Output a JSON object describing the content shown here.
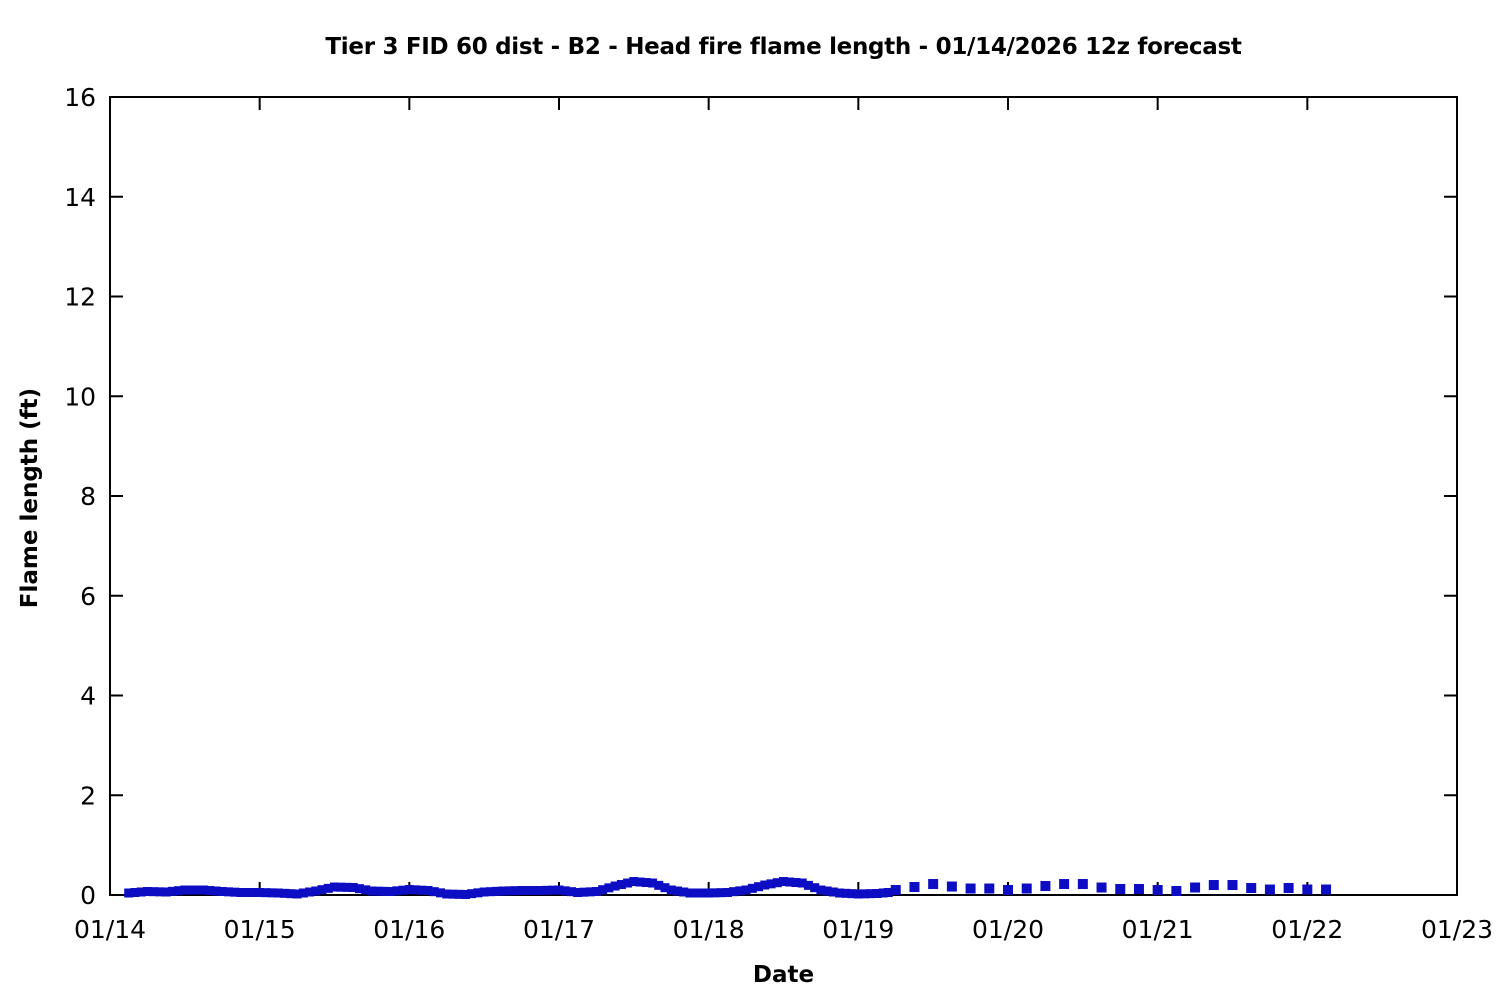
{
  "title": "Tier 3 FID 60 dist - B2 - Head fire flame length - 01/14/2026 12z forecast",
  "chart_data": {
    "type": "line",
    "title": "Tier 3 FID 60 dist - B2 - Head fire flame length - 01/14/2026 12z forecast",
    "xlabel": "Date",
    "ylabel": "Flame length (ft)",
    "x_tick_labels": [
      "01/14",
      "01/15",
      "01/16",
      "01/17",
      "01/18",
      "01/19",
      "01/20",
      "01/21",
      "01/22",
      "01/23"
    ],
    "y_tick_labels": [
      "0",
      "2",
      "4",
      "6",
      "8",
      "10",
      "12",
      "14",
      "16"
    ],
    "y_ticks": [
      0,
      2,
      4,
      6,
      8,
      10,
      12,
      14,
      16
    ],
    "ylim": [
      0,
      16
    ],
    "xlim_days_from_0114": [
      0,
      9
    ],
    "grid": false,
    "legend": "none",
    "line_color": "#0D0DC3",
    "axis_color": "#000000",
    "background_color": "#FFFFFF",
    "series": [
      {
        "name": "head-fire-flame-length-analysis-solid",
        "style": "solid",
        "x_unit": "days after 01/14 00:00",
        "y_unit": "ft",
        "points": [
          [
            0.125,
            0.04
          ],
          [
            0.25,
            0.07
          ],
          [
            0.375,
            0.06
          ],
          [
            0.5,
            0.1
          ],
          [
            0.625,
            0.1
          ],
          [
            0.75,
            0.07
          ],
          [
            0.875,
            0.05
          ],
          [
            1.0,
            0.05
          ],
          [
            1.125,
            0.04
          ],
          [
            1.25,
            0.02
          ],
          [
            1.375,
            0.08
          ],
          [
            1.5,
            0.16
          ],
          [
            1.625,
            0.15
          ],
          [
            1.75,
            0.08
          ],
          [
            1.875,
            0.07
          ],
          [
            2.0,
            0.11
          ],
          [
            2.125,
            0.09
          ],
          [
            2.25,
            0.02
          ],
          [
            2.375,
            0.01
          ],
          [
            2.5,
            0.06
          ],
          [
            2.625,
            0.08
          ],
          [
            2.75,
            0.09
          ],
          [
            2.875,
            0.09
          ],
          [
            3.0,
            0.1
          ],
          [
            3.125,
            0.05
          ],
          [
            3.25,
            0.07
          ],
          [
            3.375,
            0.18
          ],
          [
            3.5,
            0.27
          ],
          [
            3.625,
            0.24
          ],
          [
            3.75,
            0.1
          ],
          [
            3.875,
            0.04
          ],
          [
            4.0,
            0.04
          ],
          [
            4.125,
            0.05
          ],
          [
            4.25,
            0.1
          ],
          [
            4.375,
            0.2
          ],
          [
            4.5,
            0.27
          ],
          [
            4.625,
            0.24
          ],
          [
            4.75,
            0.1
          ],
          [
            4.875,
            0.04
          ],
          [
            5.0,
            0.02
          ],
          [
            5.125,
            0.03
          ],
          [
            5.2,
            0.05
          ]
        ]
      },
      {
        "name": "head-fire-flame-length-forecast-dotted",
        "style": "square-markers",
        "x_unit": "days after 01/14 00:00",
        "y_unit": "ft",
        "points": [
          [
            5.25,
            0.1
          ],
          [
            5.375,
            0.16
          ],
          [
            5.5,
            0.22
          ],
          [
            5.625,
            0.17
          ],
          [
            5.75,
            0.13
          ],
          [
            5.875,
            0.13
          ],
          [
            6.0,
            0.1
          ],
          [
            6.125,
            0.13
          ],
          [
            6.25,
            0.18
          ],
          [
            6.375,
            0.22
          ],
          [
            6.5,
            0.22
          ],
          [
            6.625,
            0.15
          ],
          [
            6.75,
            0.12
          ],
          [
            6.875,
            0.12
          ],
          [
            7.0,
            0.1
          ],
          [
            7.125,
            0.08
          ],
          [
            7.25,
            0.15
          ],
          [
            7.375,
            0.2
          ],
          [
            7.5,
            0.2
          ],
          [
            7.625,
            0.14
          ],
          [
            7.75,
            0.11
          ],
          [
            7.875,
            0.14
          ],
          [
            8.0,
            0.11
          ],
          [
            8.125,
            0.11
          ]
        ]
      }
    ]
  }
}
